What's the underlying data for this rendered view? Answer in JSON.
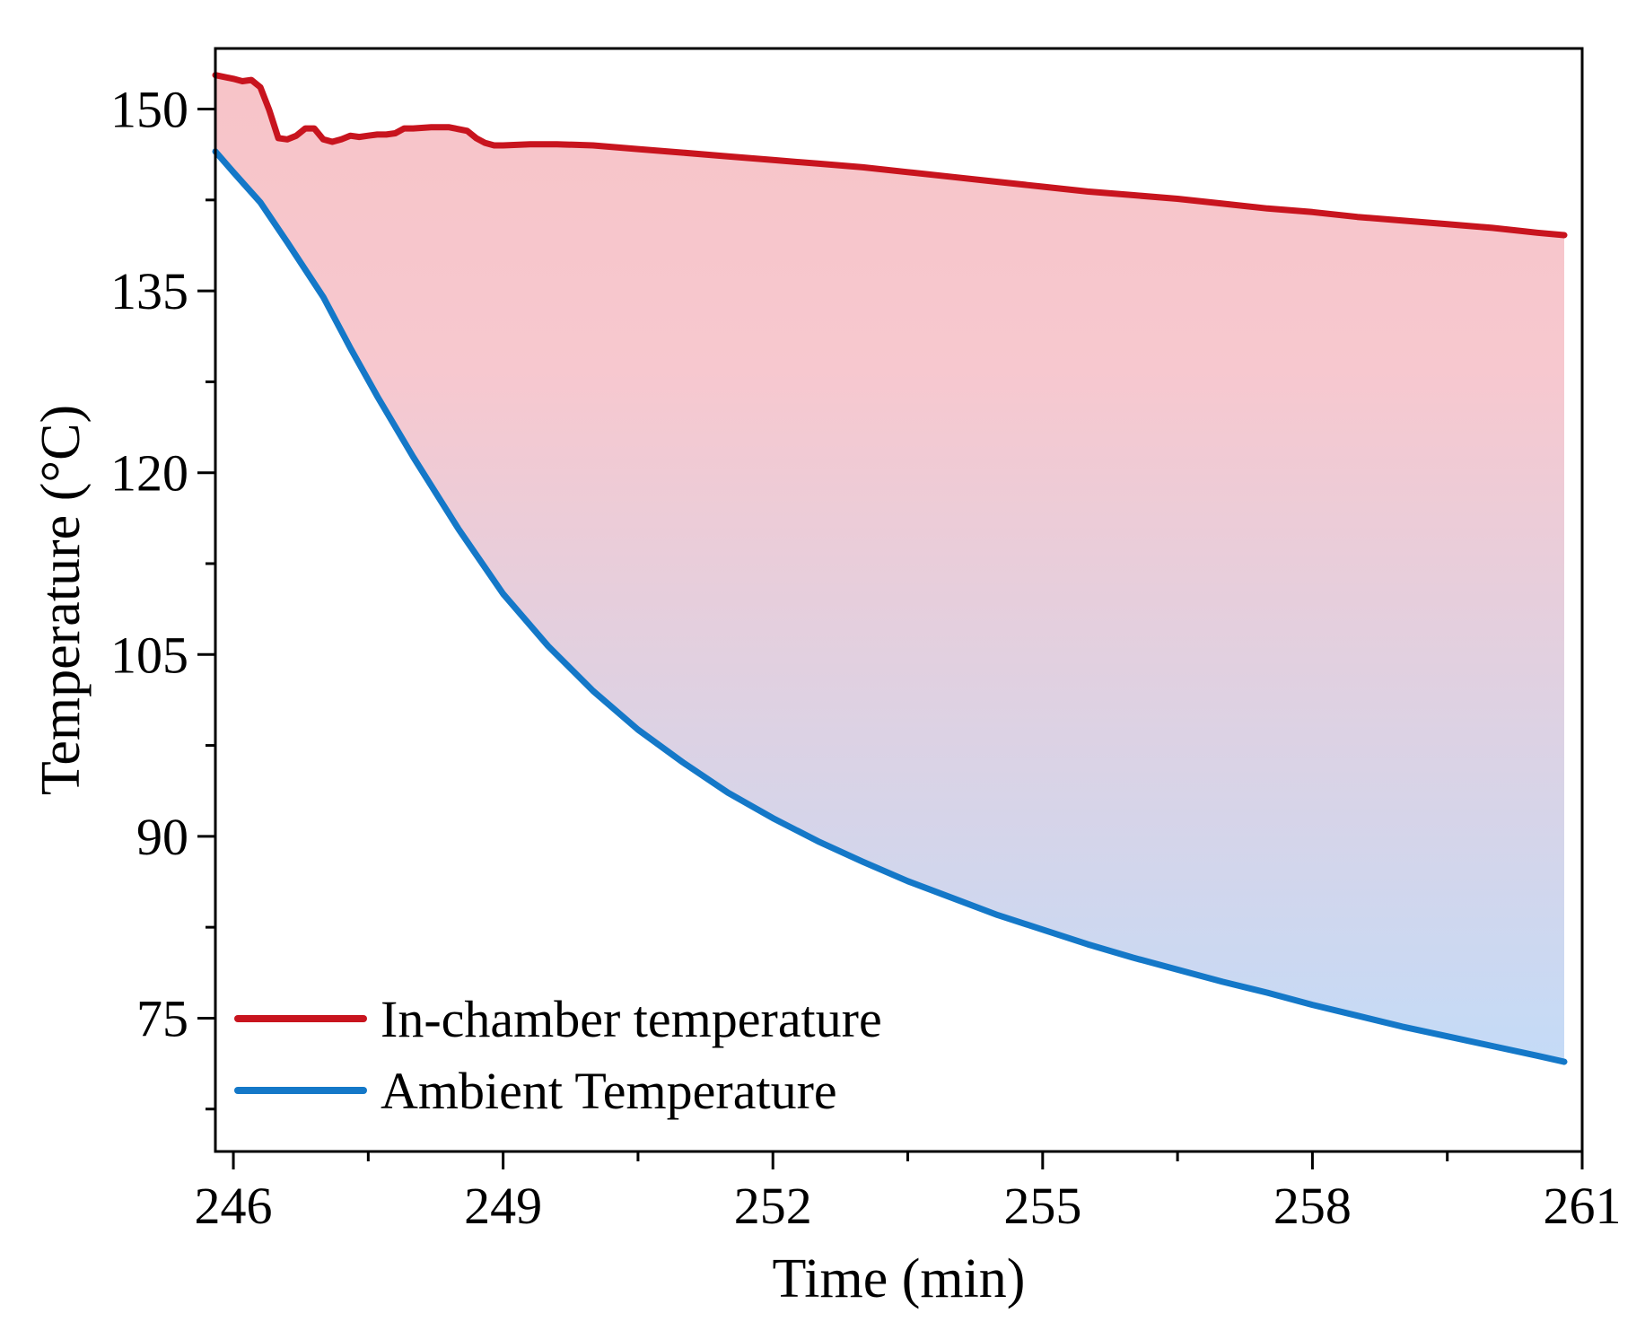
{
  "chart_data": {
    "type": "line",
    "title": "",
    "xlabel": "Time (min)",
    "ylabel": "Temperature (°C)",
    "xlim": [
      245.8,
      261
    ],
    "ylim": [
      64,
      155
    ],
    "x_ticks": [
      246,
      249,
      252,
      255,
      258,
      261
    ],
    "x_tick_labels": [
      "246",
      "249",
      "252",
      "255",
      "258",
      "261"
    ],
    "x_minor_ticks": [
      247.5,
      250.5,
      253.5,
      256.5,
      259.5
    ],
    "y_ticks": [
      75,
      90,
      105,
      120,
      135,
      150
    ],
    "y_tick_labels": [
      "75",
      "90",
      "105",
      "120",
      "135",
      "150"
    ],
    "y_minor_ticks": [
      67.5,
      82.5,
      97.5,
      112.5,
      127.5,
      142.5
    ],
    "grid": false,
    "legend_position": "bottom-left",
    "fill_between": {
      "upper": "In-chamber temperature",
      "lower": "Ambient Temperature",
      "top_color": "#f7c4c8",
      "bottom_color": "#c4dbf7"
    },
    "series": [
      {
        "name": "In-chamber temperature",
        "color": "#c8141e",
        "x": [
          245.8,
          246.0,
          246.1,
          246.2,
          246.3,
          246.4,
          246.5,
          246.6,
          246.7,
          246.8,
          246.9,
          247.0,
          247.1,
          247.2,
          247.3,
          247.4,
          247.5,
          247.6,
          247.7,
          247.8,
          247.9,
          248.0,
          248.2,
          248.4,
          248.6,
          248.7,
          248.8,
          248.9,
          249.0,
          249.3,
          249.6,
          250.0,
          250.5,
          251.0,
          251.5,
          252.0,
          252.5,
          253.0,
          253.5,
          254.0,
          254.5,
          255.0,
          255.5,
          256.0,
          256.5,
          257.0,
          257.5,
          258.0,
          258.5,
          259.0,
          259.5,
          260.0,
          260.5,
          260.8
        ],
        "values": [
          152.8,
          152.5,
          152.3,
          152.4,
          151.8,
          149.9,
          147.6,
          147.5,
          147.8,
          148.4,
          148.4,
          147.5,
          147.3,
          147.5,
          147.8,
          147.7,
          147.8,
          147.9,
          147.9,
          148.0,
          148.4,
          148.4,
          148.5,
          148.5,
          148.2,
          147.6,
          147.2,
          147.0,
          147.0,
          147.1,
          147.1,
          147.0,
          146.7,
          146.4,
          146.1,
          145.8,
          145.5,
          145.2,
          144.8,
          144.4,
          144.0,
          143.6,
          143.2,
          142.9,
          142.6,
          142.2,
          141.8,
          141.5,
          141.1,
          140.8,
          140.5,
          140.2,
          139.8,
          139.6
        ]
      },
      {
        "name": "Ambient Temperature",
        "color": "#1478c8",
        "x": [
          245.8,
          246.0,
          246.3,
          246.6,
          247.0,
          247.3,
          247.6,
          248.0,
          248.5,
          249.0,
          249.5,
          250.0,
          250.5,
          251.0,
          251.5,
          252.0,
          252.5,
          253.0,
          253.5,
          254.0,
          254.5,
          255.0,
          255.5,
          256.0,
          256.5,
          257.0,
          257.5,
          258.0,
          258.5,
          259.0,
          259.5,
          260.0,
          260.5,
          260.8
        ],
        "values": [
          146.5,
          144.8,
          142.3,
          139.0,
          134.5,
          130.3,
          126.3,
          121.3,
          115.4,
          110.0,
          105.7,
          102.0,
          98.8,
          96.1,
          93.6,
          91.5,
          89.6,
          87.9,
          86.3,
          84.9,
          83.5,
          82.3,
          81.1,
          80.0,
          79.0,
          78.0,
          77.1,
          76.1,
          75.2,
          74.3,
          73.5,
          72.7,
          71.9,
          71.4
        ]
      }
    ]
  }
}
